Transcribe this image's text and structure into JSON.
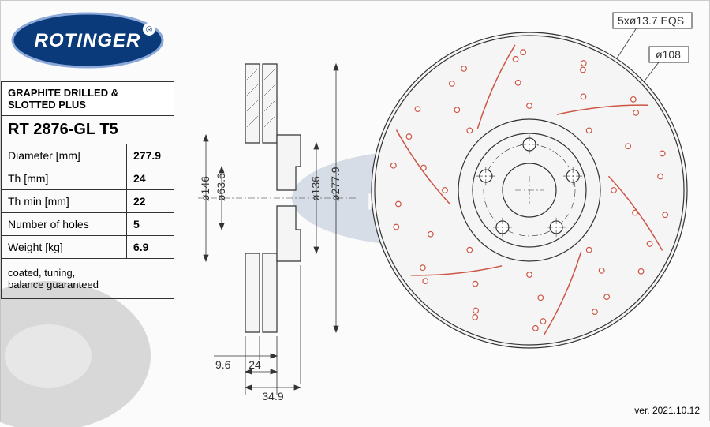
{
  "brand": "ROTINGER",
  "reg_mark": "®",
  "product_type": "GRAPHITE DRILLED & SLOTTED PLUS",
  "part_number": "RT 2876-GL T5",
  "specs": [
    {
      "label": "Diameter [mm]",
      "value": "277.9"
    },
    {
      "label": "Th [mm]",
      "value": "24"
    },
    {
      "label": "Th min [mm]",
      "value": "22"
    },
    {
      "label": "Number of holes",
      "value": "5"
    },
    {
      "label": "Weight [kg]",
      "value": "6.9"
    }
  ],
  "note": "coated, tuning,\nbalance guaranteed",
  "version": "ver. 2021.10.12",
  "callouts": {
    "bolt_pattern": "5xø13.7 EQS",
    "pcd": "ø108"
  },
  "side_dims": {
    "d146": "ø146",
    "d636": "ø63.6",
    "d136": "ø136",
    "d2779": "ø277.9",
    "t96": "9.6",
    "t24": "24",
    "t349": "34.9"
  },
  "colors": {
    "brand_blue": "#0a3a7a",
    "brand_stroke": "#8aa8d8",
    "slot_red": "#cc5544",
    "line": "#333333",
    "bg": "#fbfbfb"
  },
  "front_view": {
    "outer_r": 200,
    "inner_hub_r": 72,
    "bore_r": 34,
    "bolt_pcd_r": 58,
    "bolt_hole_r": 8,
    "n_bolts": 5,
    "drill_hole_r": 3.3,
    "n_slots": 6
  }
}
